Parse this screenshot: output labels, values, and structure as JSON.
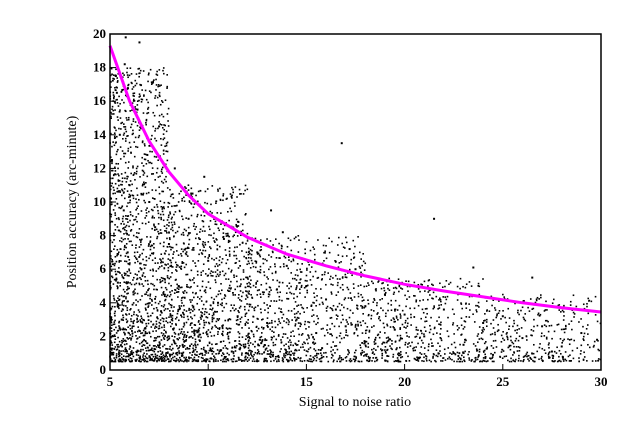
{
  "chart_data": {
    "type": "scatter",
    "title": "",
    "xlabel": "Signal to noise ratio",
    "ylabel": "Position accuracy (arc-minute)",
    "xlim": [
      5,
      30
    ],
    "ylim": [
      0,
      20
    ],
    "xticks": [
      5,
      10,
      15,
      20,
      25,
      30
    ],
    "yticks": [
      0,
      2,
      4,
      6,
      8,
      10,
      12,
      14,
      16,
      18,
      20
    ],
    "grid": false,
    "legend": "none",
    "point_color": "#000000",
    "curve_color": "#ff00ff",
    "fit_curve": {
      "x": [
        5,
        6,
        7,
        8,
        9,
        10,
        12,
        14,
        16,
        18,
        20,
        22,
        24,
        26,
        28,
        30
      ],
      "y": [
        19.3,
        16.0,
        13.6,
        11.8,
        10.4,
        9.3,
        7.9,
        6.9,
        6.2,
        5.6,
        5.1,
        4.7,
        4.35,
        4.0,
        3.7,
        3.45
      ]
    },
    "scatter_points": {
      "x": [
        5.1,
        5.2,
        5.3,
        5.4,
        5.5,
        5.6,
        5.7,
        5.8,
        5.9,
        6.0,
        6.2,
        6.4,
        6.6,
        6.8,
        7.0,
        7.3,
        7.6,
        8.0,
        8.5,
        9.0,
        9.5,
        10.0,
        10.5,
        11.0,
        11.5,
        12.0,
        12.5,
        13.0,
        13.5,
        14.0,
        14.5,
        15.0,
        15.5,
        16.0,
        16.5,
        17.0,
        17.5,
        18.0,
        18.5,
        19.0,
        19.5,
        20.0,
        21.0,
        22.0,
        23.0,
        24.0,
        25.0,
        26.0,
        27.0,
        28.0,
        29.0,
        29.8,
        6.5,
        7.5,
        8.3,
        9.2,
        13.2,
        16.8,
        21.5,
        26.5,
        6.1,
        7.1,
        7.8,
        8.7,
        11.2,
        12.7,
        14.2,
        15.8,
        18.2,
        22.5,
        24.5,
        27.5,
        5.35,
        5.75,
        6.9,
        9.8,
        10.8,
        13.8,
        17.2,
        23.5
      ],
      "y": [
        12.5,
        8.0,
        17.5,
        5.2,
        14.0,
        3.0,
        9.5,
        19.8,
        7.0,
        11.0,
        4.5,
        15.5,
        6.0,
        2.5,
        10.0,
        8.5,
        3.5,
        7.5,
        5.0,
        9.0,
        2.0,
        6.5,
        4.0,
        8.0,
        3.2,
        5.5,
        7.0,
        2.8,
        4.8,
        6.2,
        3.0,
        5.0,
        2.2,
        4.2,
        3.6,
        2.6,
        6.0,
        3.8,
        1.8,
        4.5,
        2.4,
        3.3,
        2.0,
        3.6,
        1.5,
        2.8,
        3.2,
        1.9,
        2.6,
        1.4,
        2.2,
        1.8,
        19.5,
        14.5,
        12.0,
        10.5,
        9.5,
        13.5,
        9.0,
        5.5,
        1.0,
        1.2,
        0.8,
        1.5,
        1.1,
        1.6,
        0.9,
        1.3,
        0.7,
        1.0,
        0.9,
        1.1,
        16.5,
        18.2,
        12.8,
        11.5,
        7.8,
        8.2,
        7.2,
        6.1
      ]
    },
    "density_regions": [
      {
        "x0": 5,
        "x1": 8,
        "y0": 0.5,
        "y1": 18,
        "weight": 0.34
      },
      {
        "x0": 8,
        "x1": 12,
        "y0": 0.5,
        "y1": 11,
        "weight": 0.24
      },
      {
        "x0": 12,
        "x1": 18,
        "y0": 0.5,
        "y1": 8,
        "weight": 0.2
      },
      {
        "x0": 18,
        "x1": 24,
        "y0": 0.5,
        "y1": 5.5,
        "weight": 0.13
      },
      {
        "x0": 24,
        "x1": 30,
        "y0": 0.5,
        "y1": 4.5,
        "weight": 0.09
      }
    ]
  }
}
